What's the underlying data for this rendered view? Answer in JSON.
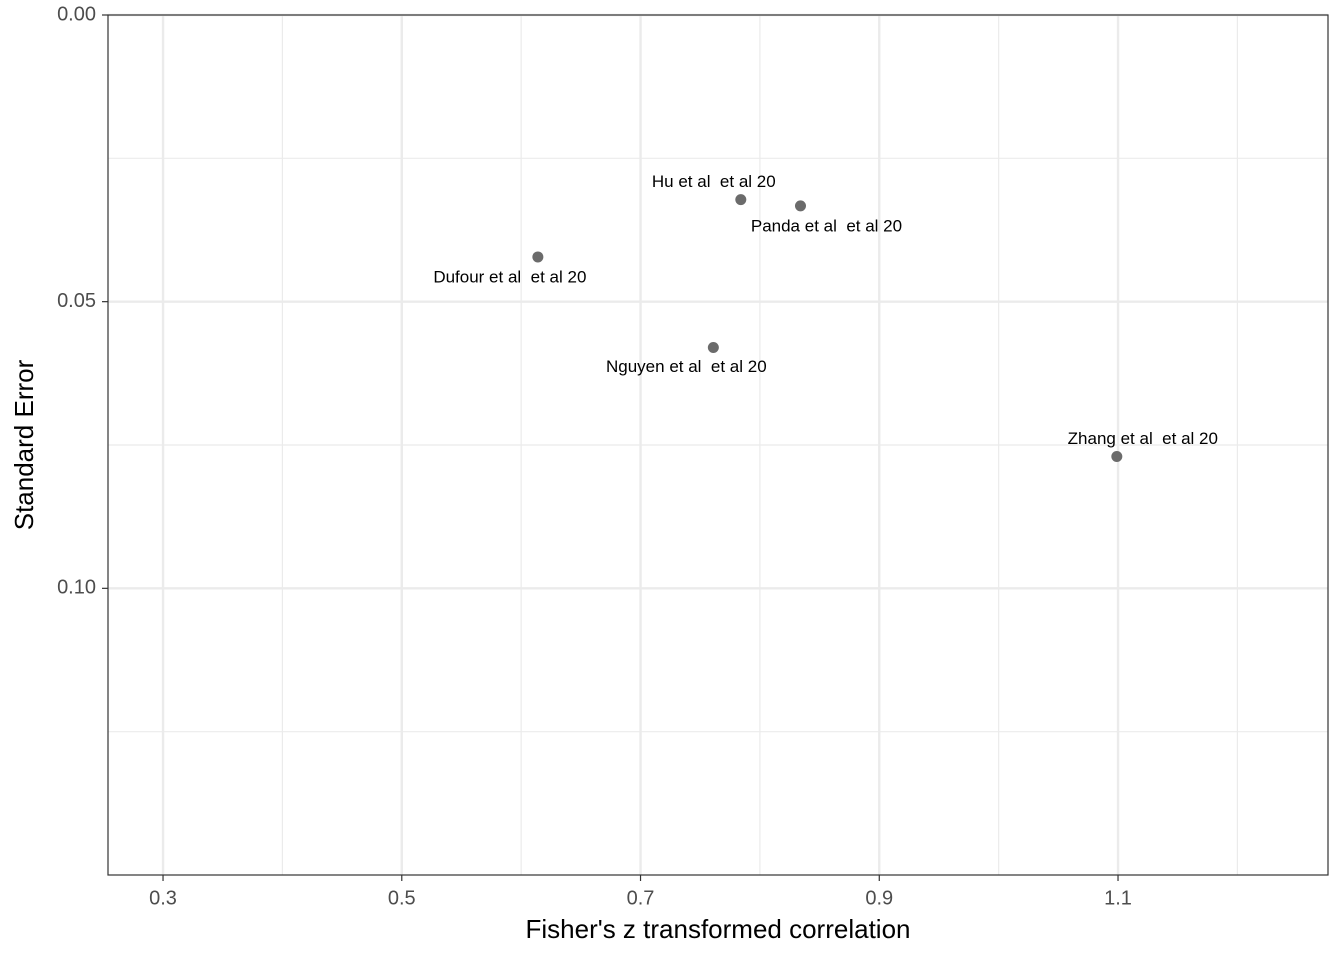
{
  "chart_data": {
    "type": "scatter",
    "xlabel": "Fisher's z transformed correlation",
    "ylabel": "Standard Error",
    "x": [
      0.784,
      0.834,
      0.614,
      0.761,
      1.099
    ],
    "values": [
      0.0322,
      0.0333,
      0.0422,
      0.058,
      0.077
    ],
    "labels": [
      "Hu et al  et al 20",
      "Panda et al  et al 20",
      "Dufour et al  et al 20",
      "Nguyen et al  et al 20",
      "Zhang et al  et al 20"
    ],
    "color": "#6b6b6b",
    "xlim": [
      0.2539,
      1.2759
    ],
    "xticks": [
      0.3,
      0.5,
      0.7,
      0.9,
      1.1
    ],
    "xminor": [
      0.4,
      0.6,
      0.8,
      1.0,
      1.2
    ],
    "ylim": [
      0,
      0.15
    ],
    "y_reversed": true,
    "yticks": [
      {
        "value": 0,
        "label": "0.00"
      },
      {
        "value": 0.05,
        "label": "0.05"
      },
      {
        "value": 0.1,
        "label": "0.10"
      }
    ],
    "yminor": [
      0.025,
      0.075,
      0.125
    ],
    "grid": true
  }
}
